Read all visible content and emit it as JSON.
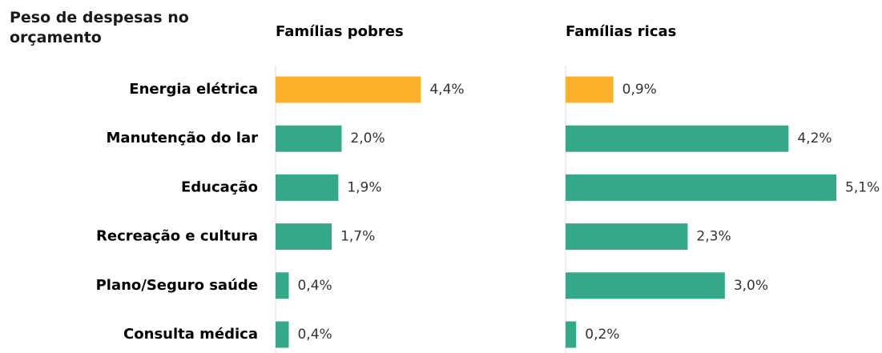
{
  "title": "Peso de despesas no orçamento",
  "categories": [
    "Energia elétrica",
    "Manutenção do lar",
    "Educação",
    "Recreação e cultura",
    "Plano/Seguro saúde",
    "Consulta médica"
  ],
  "chart_data": [
    {
      "type": "bar",
      "orientation": "horizontal",
      "title": "Famílias pobres",
      "values": [
        4.4,
        2.0,
        1.9,
        1.7,
        0.4,
        0.4
      ],
      "value_labels": [
        "4,4%",
        "2,0%",
        "1,9%",
        "1,7%",
        "0,4%",
        "0,4%"
      ],
      "colors": [
        "#fdb128",
        "#36a88a",
        "#36a88a",
        "#36a88a",
        "#36a88a",
        "#36a88a"
      ],
      "xlim": [
        0,
        8.2
      ]
    },
    {
      "type": "bar",
      "orientation": "horizontal",
      "title": "Famílias ricas",
      "values": [
        0.9,
        4.2,
        5.1,
        2.3,
        3.0,
        0.2
      ],
      "value_labels": [
        "0,9%",
        "4,2%",
        "5,1%",
        "2,3%",
        "3,0%",
        "0,2%"
      ],
      "colors": [
        "#fdb128",
        "#36a88a",
        "#36a88a",
        "#36a88a",
        "#36a88a",
        "#36a88a"
      ],
      "xlim": [
        0,
        5.1
      ]
    }
  ]
}
